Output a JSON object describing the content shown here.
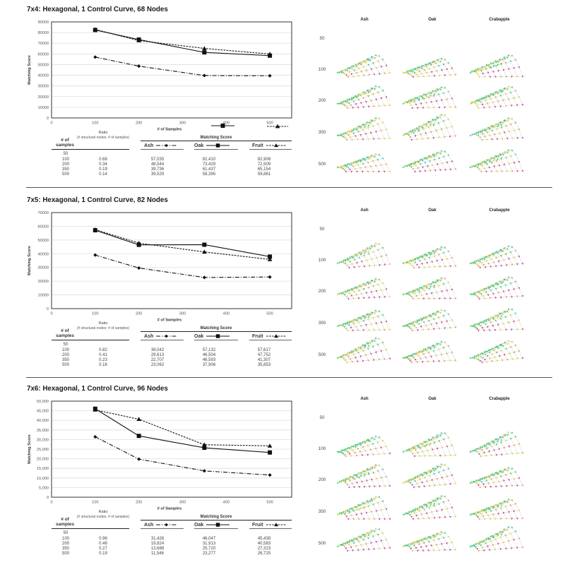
{
  "sections": [
    {
      "title": "7x4: Hexagonal, 1 Control Curve, 68 Nodes",
      "table": {
        "samples_header_line1": "# of",
        "samples_header_line2": "samples",
        "ratio_header": "Ratio",
        "ratio_subheader": "(# structural nodes: # of samples)",
        "score_header": "Matching Score",
        "score_columns": [
          "Ash",
          "Oak",
          "Fruit"
        ],
        "rows": [
          {
            "samples": "50",
            "ratio": "",
            "ash": "",
            "oak": "",
            "fruit": ""
          },
          {
            "samples": "100",
            "ratio": "0.68",
            "ash": "57,035",
            "oak": "82,410",
            "fruit": "82,908"
          },
          {
            "samples": "200",
            "ratio": "0.34",
            "ash": "48,544",
            "oak": "73,429",
            "fruit": "72,509"
          },
          {
            "samples": "350",
            "ratio": "0.19",
            "ash": "39,736",
            "oak": "61,437",
            "fruit": "65,154"
          },
          {
            "samples": "500",
            "ratio": "0.14",
            "ash": "39,529",
            "oak": "58,395",
            "fruit": "59,881"
          }
        ]
      },
      "renders": {
        "columns": [
          "Ash",
          "Oak",
          "Crabapple"
        ],
        "rows": [
          {
            "label": "50",
            "has_renders": false
          },
          {
            "label": "100",
            "has_renders": true
          },
          {
            "label": "200",
            "has_renders": true
          },
          {
            "label": "350",
            "has_renders": true
          },
          {
            "label": "500",
            "has_renders": true
          }
        ]
      }
    },
    {
      "title": "7x5: Hexagonal, 1 Control Curve, 82 Nodes",
      "table": {
        "samples_header_line1": "# of",
        "samples_header_line2": "samples",
        "ratio_header": "Ratio",
        "ratio_subheader": "(# structural nodes: # of samples)",
        "score_header": "Matching Score",
        "score_columns": [
          "Ash",
          "Oak",
          "Fruit"
        ],
        "rows": [
          {
            "samples": "50",
            "ratio": "",
            "ash": "",
            "oak": "",
            "fruit": ""
          },
          {
            "samples": "100",
            "ratio": "0.82",
            "ash": "39,042",
            "oak": "57,132",
            "fruit": "57,617"
          },
          {
            "samples": "200",
            "ratio": "0.41",
            "ash": "29,613",
            "oak": "46,504",
            "fruit": "47,752"
          },
          {
            "samples": "350",
            "ratio": "0.23",
            "ash": "22,707",
            "oak": "46,593",
            "fruit": "41,307"
          },
          {
            "samples": "500",
            "ratio": "0.16",
            "ash": "23,062",
            "oak": "37,906",
            "fruit": "35,853"
          }
        ]
      },
      "renders": {
        "columns": [
          "Ash",
          "Oak",
          "Crabapple"
        ],
        "rows": [
          {
            "label": "50",
            "has_renders": false
          },
          {
            "label": "100",
            "has_renders": true
          },
          {
            "label": "200",
            "has_renders": true
          },
          {
            "label": "350",
            "has_renders": true
          },
          {
            "label": "500",
            "has_renders": true
          }
        ]
      }
    },
    {
      "title": "7x6: Hexagonal, 1 Control Curve, 96 Nodes",
      "table": {
        "samples_header_line1": "# of",
        "samples_header_line2": "samples",
        "ratio_header": "Ratio",
        "ratio_subheader": "(# structural nodes: # of samples)",
        "score_header": "Matching Score",
        "score_columns": [
          "Ash",
          "Oak",
          "Fruit"
        ],
        "rows": [
          {
            "samples": "50",
            "ratio": "",
            "ash": "",
            "oak": "",
            "fruit": ""
          },
          {
            "samples": "100",
            "ratio": "0.96",
            "ash": "31,426",
            "oak": "46,047",
            "fruit": "45,439"
          },
          {
            "samples": "200",
            "ratio": "0.48",
            "ash": "19,824",
            "oak": "31,913",
            "fruit": "40,583"
          },
          {
            "samples": "350",
            "ratio": "0.27",
            "ash": "13,688",
            "oak": "25,720",
            "fruit": "27,323"
          },
          {
            "samples": "500",
            "ratio": "0.19",
            "ash": "11,546",
            "oak": "23,277",
            "fruit": "26,725"
          }
        ]
      },
      "renders": {
        "columns": [
          "Ash",
          "Oak",
          "Crabapple"
        ],
        "rows": [
          {
            "label": "50",
            "has_renders": false
          },
          {
            "label": "100",
            "has_renders": true
          },
          {
            "label": "200",
            "has_renders": true
          },
          {
            "label": "350",
            "has_renders": true
          },
          {
            "label": "500",
            "has_renders": true
          }
        ]
      }
    }
  ],
  "colors": {
    "series_line": "#111111",
    "gridline": "#dedede",
    "glyph_green": "#4cc653",
    "glyph_teal": "#35cfa6",
    "glyph_yellow": "#e3d13b",
    "glyph_magenta": "#cc3f96",
    "glyph_orange": "#dca34a",
    "mesh_line": "#cccccc"
  },
  "chart_data": [
    {
      "type": "line",
      "title": "7x4: Hexagonal, 1 Control Curve, 68 Nodes",
      "xlabel": "# of Samples",
      "ylabel": "Matching Score",
      "x": [
        100,
        200,
        350,
        500
      ],
      "series": [
        {
          "name": "Ash",
          "values": [
            57035,
            48544,
            39736,
            39529
          ],
          "line": "dash-dot",
          "marker": "diamond"
        },
        {
          "name": "Oak",
          "values": [
            82410,
            73429,
            61437,
            58395
          ],
          "line": "solid",
          "marker": "square"
        },
        {
          "name": "Fruit",
          "values": [
            82908,
            72509,
            65154,
            59881
          ],
          "line": "dashed",
          "marker": "triangle"
        }
      ],
      "xlim": [
        0,
        550
      ],
      "xticks": [
        0,
        100,
        200,
        300,
        400,
        500
      ],
      "xtick_labels": [
        "0",
        "100",
        "200",
        "300",
        "400",
        "500"
      ],
      "ylim": [
        0,
        90000
      ],
      "yticks": [
        0,
        10000,
        20000,
        30000,
        40000,
        50000,
        60000,
        70000,
        80000,
        90000
      ],
      "ytick_labels": [
        "0",
        "10000",
        "20000",
        "30000",
        "40000",
        "50000",
        "60000",
        "70000",
        "80000",
        "90000"
      ],
      "grid": true,
      "legend": {
        "position": "below-x-axis-right",
        "entries": [
          "Oak",
          "Fruit"
        ],
        "labels_shown": false
      }
    },
    {
      "type": "line",
      "title": "7x5: Hexagonal, 1 Control Curve, 82 Nodes",
      "xlabel": "# of Samples",
      "ylabel": "Matching Score",
      "x": [
        100,
        200,
        350,
        500
      ],
      "series": [
        {
          "name": "Ash",
          "values": [
            39042,
            29613,
            22707,
            23062
          ],
          "line": "dash-dot",
          "marker": "diamond"
        },
        {
          "name": "Oak",
          "values": [
            57132,
            46504,
            46593,
            37906
          ],
          "line": "solid",
          "marker": "square"
        },
        {
          "name": "Fruit",
          "values": [
            57617,
            47752,
            41307,
            35853
          ],
          "line": "dashed",
          "marker": "triangle"
        }
      ],
      "xlim": [
        0,
        550
      ],
      "xticks": [
        0,
        100,
        200,
        300,
        400,
        500
      ],
      "xtick_labels": [
        "0",
        "100",
        "200",
        "300",
        "400",
        "500"
      ],
      "ylim": [
        0,
        70000
      ],
      "yticks": [
        0,
        10000,
        20000,
        30000,
        40000,
        50000,
        60000,
        70000
      ],
      "ytick_labels": [
        "0",
        "10000",
        "20000",
        "30000",
        "40000",
        "50000",
        "60000",
        "70000"
      ],
      "grid": true,
      "legend": null
    },
    {
      "type": "line",
      "title": "7x6: Hexagonal, 1 Control Curve, 96 Nodes",
      "xlabel": "# of Samples",
      "ylabel": "Matching Score",
      "x": [
        100,
        200,
        350,
        500
      ],
      "series": [
        {
          "name": "Ash",
          "values": [
            31426,
            19824,
            13688,
            11546
          ],
          "line": "dash-dot",
          "marker": "diamond"
        },
        {
          "name": "Oak",
          "values": [
            46047,
            31913,
            25720,
            23277
          ],
          "line": "solid",
          "marker": "square"
        },
        {
          "name": "Fruit",
          "values": [
            45439,
            40583,
            27323,
            26725
          ],
          "line": "dashed",
          "marker": "triangle"
        }
      ],
      "xlim": [
        0,
        550
      ],
      "xticks": [
        0,
        100,
        200,
        300,
        400,
        500
      ],
      "xtick_labels": [
        "0",
        "100",
        "200",
        "300",
        "400",
        "500"
      ],
      "ylim": [
        0,
        50000
      ],
      "yticks": [
        0,
        5000,
        10000,
        15000,
        20000,
        25000,
        30000,
        35000,
        40000,
        45000,
        50000
      ],
      "ytick_labels": [
        "0",
        "5,000",
        "10,000",
        "15,000",
        "20,000",
        "25,000",
        "30,000",
        "35,000",
        "40,000",
        "45,000",
        "50,000"
      ],
      "grid": true,
      "legend": null
    }
  ]
}
